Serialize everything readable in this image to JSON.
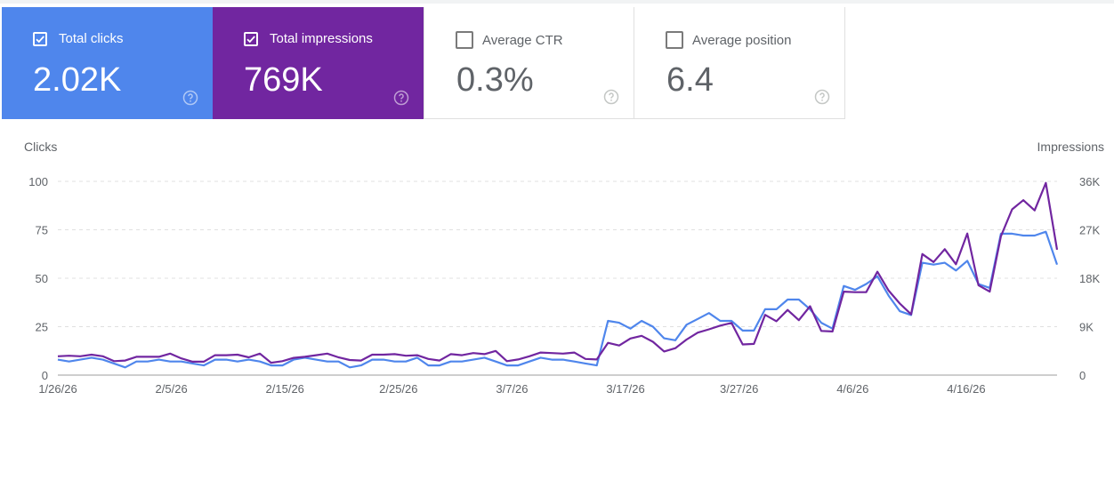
{
  "tiles": [
    {
      "label": "Total clicks",
      "value": "2.02K",
      "checked": true
    },
    {
      "label": "Total impressions",
      "value": "769K",
      "checked": true
    },
    {
      "label": "Average CTR",
      "value": "0.3%",
      "checked": false
    },
    {
      "label": "Average position",
      "value": "6.4",
      "checked": false
    }
  ],
  "colors": {
    "clicks": "#4f86ec",
    "impressions": "#7126a0",
    "grid": "#e0e0e0",
    "axis": "#9e9e9e"
  },
  "icons": {
    "check": "check-icon",
    "help": "help-circle-icon"
  },
  "chart_data": {
    "type": "line",
    "left_axis_title": "Clicks",
    "right_axis_title": "Impressions",
    "left_ticks": [
      {
        "label": "0",
        "value": 0
      },
      {
        "label": "25",
        "value": 25
      },
      {
        "label": "50",
        "value": 50
      },
      {
        "label": "75",
        "value": 75
      },
      {
        "label": "100",
        "value": 100
      }
    ],
    "right_ticks": [
      {
        "label": "0",
        "value": 0
      },
      {
        "label": "9K",
        "value": 9000
      },
      {
        "label": "18K",
        "value": 18000
      },
      {
        "label": "27K",
        "value": 27000
      },
      {
        "label": "36K",
        "value": 36000
      }
    ],
    "left_range": [
      0,
      100
    ],
    "right_range": [
      0,
      36000
    ],
    "x_tick_labels": [
      "1/26/26",
      "2/5/26",
      "2/15/26",
      "2/25/26",
      "3/7/26",
      "3/17/26",
      "3/27/26",
      "4/6/26",
      "4/16/26"
    ],
    "x_tick_days": [
      0,
      10,
      20,
      30,
      40,
      50,
      60,
      70,
      80
    ],
    "x_range_days": [
      0,
      88
    ],
    "grid": true,
    "series": [
      {
        "name": "Total clicks",
        "axis": "left",
        "color": "#4f86ec",
        "values": [
          8,
          7,
          8,
          9,
          8,
          6,
          4,
          7,
          7,
          8,
          7,
          7,
          6,
          5,
          8,
          8,
          7,
          8,
          7,
          5,
          5,
          8,
          9,
          8,
          7,
          7,
          4,
          5,
          8,
          8,
          7,
          7,
          9,
          5,
          5,
          7,
          7,
          8,
          9,
          7,
          5,
          5,
          7,
          9,
          8,
          8,
          7,
          6,
          5,
          28,
          27,
          24,
          28,
          25,
          19,
          18,
          26,
          29,
          32,
          28,
          28,
          23,
          23,
          34,
          34,
          39,
          39,
          34,
          27,
          24,
          46,
          44,
          47,
          51,
          41,
          33,
          31,
          58,
          57,
          58,
          54,
          59,
          47,
          45,
          73,
          73,
          72,
          72,
          74,
          57
        ],
        "start_day": 0
      },
      {
        "name": "Total impressions",
        "axis": "right",
        "color": "#7126a0",
        "values": [
          3500,
          3600,
          3500,
          3800,
          3500,
          2600,
          2700,
          3400,
          3400,
          3400,
          4000,
          3100,
          2500,
          2500,
          3700,
          3700,
          3800,
          3300,
          4000,
          2300,
          2600,
          3200,
          3400,
          3700,
          4000,
          3300,
          2800,
          2700,
          3800,
          3800,
          3900,
          3600,
          3700,
          3000,
          2700,
          3900,
          3700,
          4100,
          3900,
          4500,
          2600,
          2900,
          3500,
          4200,
          4100,
          4000,
          4200,
          3000,
          2900,
          6000,
          5500,
          6800,
          7300,
          6200,
          4400,
          5000,
          6600,
          7900,
          8500,
          9200,
          9700,
          5700,
          5800,
          11200,
          10000,
          12100,
          10200,
          12800,
          8200,
          8100,
          15500,
          15400,
          15400,
          19200,
          15700,
          13300,
          11300,
          22500,
          21000,
          23400,
          20600,
          26300,
          16700,
          15500,
          25800,
          30800,
          32500,
          30600,
          35700,
          23300
        ],
        "start_day": 0
      }
    ]
  }
}
